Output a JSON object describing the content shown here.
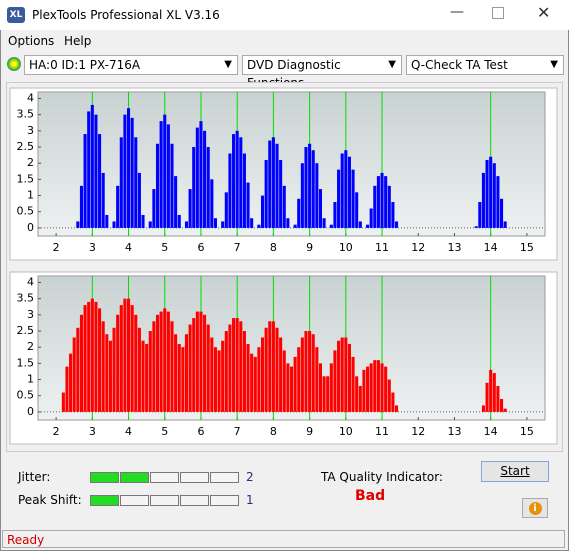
{
  "window": {
    "icon": "XL",
    "title": "PlexTools Professional XL V3.16"
  },
  "menu": [
    "Options",
    "Help"
  ],
  "toolbar": {
    "drive": "HA:0 ID:1  PX-716A",
    "function": "DVD Diagnostic Functions",
    "test": "Q-Check TA Test"
  },
  "chart_data": [
    {
      "type": "bar",
      "color": "#0000ff",
      "reference_color": "#00dd00",
      "xlim": [
        1.5,
        15.5
      ],
      "xticks": [
        2,
        3,
        4,
        5,
        6,
        7,
        8,
        9,
        10,
        11,
        12,
        13,
        14,
        15
      ],
      "ylim": [
        -0.25,
        4.2
      ],
      "yticks": [
        0,
        0.5,
        1,
        1.5,
        2,
        2.5,
        3,
        3.5,
        4
      ],
      "reference_lines": [
        3,
        4,
        5,
        6,
        7,
        8,
        9,
        10,
        11,
        14
      ],
      "x": [
        2.6,
        2.7,
        2.8,
        2.9,
        3,
        3.1,
        3.2,
        3.3,
        3.4,
        3.5,
        3.6,
        3.7,
        3.8,
        3.9,
        4,
        4.1,
        4.2,
        4.3,
        4.4,
        4.5,
        4.6,
        4.7,
        4.8,
        4.9,
        5,
        5.1,
        5.2,
        5.3,
        5.4,
        5.5,
        5.6,
        5.7,
        5.8,
        5.9,
        6,
        6.1,
        6.2,
        6.3,
        6.4,
        6.5,
        6.6,
        6.7,
        6.8,
        6.9,
        7,
        7.1,
        7.2,
        7.3,
        7.4,
        7.5,
        7.6,
        7.7,
        7.8,
        7.9,
        8,
        8.1,
        8.2,
        8.3,
        8.4,
        8.5,
        8.6,
        8.7,
        8.8,
        8.9,
        9,
        9.1,
        9.2,
        9.3,
        9.4,
        9.5,
        9.6,
        9.7,
        9.8,
        9.9,
        10,
        10.1,
        10.2,
        10.3,
        10.4,
        10.5,
        10.6,
        10.7,
        10.8,
        10.9,
        11,
        11.1,
        11.2,
        11.3,
        11.4,
        11.5,
        13.6,
        13.7,
        13.8,
        13.9,
        14,
        14.1,
        14.2,
        14.3,
        14.4,
        14.5
      ],
      "values": [
        0.2,
        1.3,
        2.9,
        3.6,
        3.8,
        3.5,
        2.9,
        1.7,
        0.4,
        0,
        0.2,
        1.3,
        2.8,
        3.5,
        3.7,
        3.4,
        2.8,
        1.7,
        0.4,
        0,
        0.2,
        1.2,
        2.6,
        3.3,
        3.5,
        3.2,
        2.6,
        1.6,
        0.4,
        0,
        0.2,
        1.2,
        2.5,
        3.1,
        3.3,
        3.0,
        2.5,
        1.5,
        0.3,
        0,
        0.2,
        1.1,
        2.3,
        2.9,
        3.0,
        2.8,
        2.3,
        1.4,
        0.3,
        0,
        0.1,
        1.0,
        2.1,
        2.7,
        2.8,
        2.6,
        2.1,
        1.3,
        0.3,
        0,
        0.1,
        0.9,
        2.0,
        2.5,
        2.6,
        2.4,
        2.0,
        1.2,
        0.3,
        0,
        0.1,
        0.8,
        1.8,
        2.3,
        2.4,
        2.2,
        1.8,
        1.1,
        0.2,
        0,
        0.1,
        0.6,
        1.3,
        1.6,
        1.7,
        1.6,
        1.3,
        0.8,
        0.2,
        0,
        0.05,
        0.8,
        1.7,
        2.1,
        2.2,
        2.0,
        1.6,
        0.9,
        0.2,
        0
      ]
    },
    {
      "type": "bar",
      "color": "#ff0000",
      "reference_color": "#00dd00",
      "xlim": [
        1.5,
        15.5
      ],
      "xticks": [
        2,
        3,
        4,
        5,
        6,
        7,
        8,
        9,
        10,
        11,
        12,
        13,
        14,
        15
      ],
      "ylim": [
        -0.25,
        4.2
      ],
      "yticks": [
        0,
        0.5,
        1,
        1.5,
        2,
        2.5,
        3,
        3.5,
        4
      ],
      "reference_lines": [
        3,
        4,
        5,
        6,
        7,
        8,
        9,
        10,
        11,
        14
      ],
      "x": [
        2.2,
        2.3,
        2.4,
        2.5,
        2.6,
        2.7,
        2.8,
        2.9,
        3,
        3.1,
        3.2,
        3.3,
        3.4,
        3.5,
        3.6,
        3.7,
        3.8,
        3.9,
        4,
        4.1,
        4.2,
        4.3,
        4.4,
        4.5,
        4.6,
        4.7,
        4.8,
        4.9,
        5,
        5.1,
        5.2,
        5.3,
        5.4,
        5.5,
        5.6,
        5.7,
        5.8,
        5.9,
        6,
        6.1,
        6.2,
        6.3,
        6.4,
        6.5,
        6.6,
        6.7,
        6.8,
        6.9,
        7,
        7.1,
        7.2,
        7.3,
        7.4,
        7.5,
        7.6,
        7.7,
        7.8,
        7.9,
        8,
        8.1,
        8.2,
        8.3,
        8.4,
        8.5,
        8.6,
        8.7,
        8.8,
        8.9,
        9,
        9.1,
        9.2,
        9.3,
        9.4,
        9.5,
        9.6,
        9.7,
        9.8,
        9.9,
        10,
        10.1,
        10.2,
        10.3,
        10.4,
        10.5,
        10.6,
        10.7,
        10.8,
        10.9,
        11,
        11.1,
        11.2,
        11.3,
        11.4,
        11.5,
        13.8,
        13.9,
        14,
        14.1,
        14.2,
        14.3,
        14.4,
        14.5
      ],
      "values": [
        0.6,
        1.4,
        1.8,
        2.3,
        2.6,
        3.0,
        3.3,
        3.4,
        3.5,
        3.4,
        3.2,
        2.8,
        2.4,
        2.2,
        2.6,
        3.0,
        3.3,
        3.5,
        3.5,
        3.3,
        3.0,
        2.6,
        2.2,
        2.1,
        2.5,
        2.8,
        3.0,
        3.1,
        3.2,
        3.1,
        2.8,
        2.4,
        2.1,
        2.0,
        2.4,
        2.7,
        2.9,
        3.1,
        3.1,
        3.0,
        2.7,
        2.3,
        2.0,
        1.9,
        2.2,
        2.5,
        2.7,
        2.9,
        2.9,
        2.8,
        2.5,
        2.1,
        1.8,
        1.7,
        2.0,
        2.3,
        2.6,
        2.8,
        2.8,
        2.6,
        2.3,
        1.9,
        1.5,
        1.4,
        1.7,
        2.0,
        2.3,
        2.5,
        2.5,
        2.4,
        2.0,
        1.5,
        1.1,
        1.1,
        1.5,
        1.9,
        2.2,
        2.3,
        2.3,
        2.1,
        1.7,
        1.1,
        0.8,
        1.3,
        1.4,
        1.5,
        1.6,
        1.6,
        1.5,
        1.4,
        1.0,
        0.6,
        0.2,
        0,
        0.2,
        0.9,
        1.3,
        1.2,
        0.8,
        0.4,
        0.1,
        0
      ]
    }
  ],
  "meters": [
    {
      "label": "Jitter:",
      "value": 2,
      "segments": 5
    },
    {
      "label": "Peak Shift:",
      "value": 1,
      "segments": 5
    }
  ],
  "quality": {
    "label": "TA Quality Indicator:",
    "result": "Bad"
  },
  "start_button": "Start",
  "status": "Ready"
}
